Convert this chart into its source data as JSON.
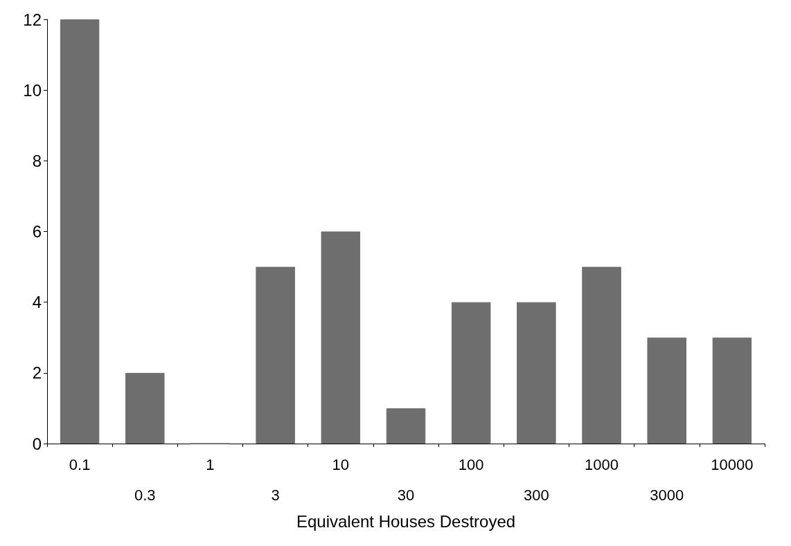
{
  "chart_data": {
    "type": "bar",
    "xlabel": "Equivalent Houses Destroyed",
    "categories": [
      "0.1",
      "0.3",
      "1",
      "3",
      "10",
      "30",
      "100",
      "300",
      "1000",
      "3000",
      "10000"
    ],
    "values": [
      12,
      2,
      0,
      5,
      6,
      1,
      4,
      4,
      5,
      3,
      3
    ],
    "color": "#6e6e6e",
    "ylim": [
      0,
      12
    ],
    "yticks": [
      0,
      2,
      4,
      6,
      8,
      10,
      12
    ],
    "grid": false
  }
}
